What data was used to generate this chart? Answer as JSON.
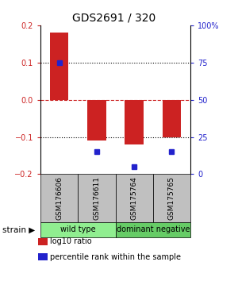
{
  "title": "GDS2691 / 320",
  "samples": [
    "GSM176606",
    "GSM176611",
    "GSM175764",
    "GSM175765"
  ],
  "log10_ratios": [
    0.18,
    -0.11,
    -0.12,
    -0.1
  ],
  "percentile_ranks": [
    75,
    15,
    5,
    15
  ],
  "groups": [
    {
      "label": "wild type",
      "samples": [
        0,
        1
      ],
      "color": "#90EE90"
    },
    {
      "label": "dominant negative",
      "samples": [
        2,
        3
      ],
      "color": "#66CC66"
    }
  ],
  "group_label": "strain",
  "ylim": [
    -0.2,
    0.2
  ],
  "yticks_left": [
    -0.2,
    -0.1,
    0,
    0.1,
    0.2
  ],
  "yticks_right": [
    0,
    25,
    50,
    75,
    100
  ],
  "bar_color": "#CC2222",
  "dot_color": "#2222CC",
  "sample_box_color": "#C0C0C0",
  "hline_color": "#CC2222",
  "background_color": "#FFFFFF",
  "legend_items": [
    {
      "color": "#CC2222",
      "label": "log10 ratio"
    },
    {
      "color": "#2222CC",
      "label": "percentile rank within the sample"
    }
  ]
}
